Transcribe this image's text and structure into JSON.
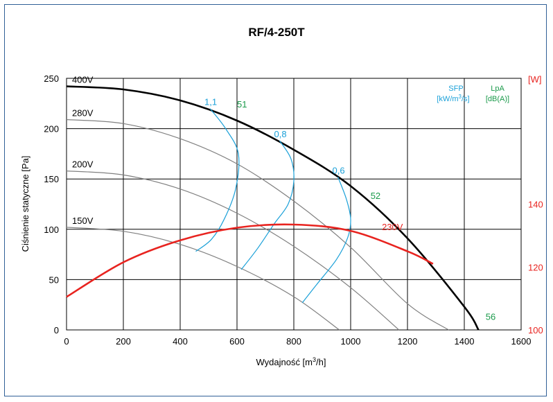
{
  "chart_data": {
    "type": "line",
    "title": "RF/4-250T",
    "xlabel": "Wydajność [m³/h]",
    "ylabel": "Ciśnienie statyczne [Pa]",
    "y2label": "[W]",
    "xlim": [
      0,
      1600
    ],
    "ylim": [
      0,
      250
    ],
    "y2lim": [
      100,
      180
    ],
    "xticks": [
      "0",
      "200",
      "400",
      "600",
      "800",
      "1000",
      "1200",
      "1400",
      "1600"
    ],
    "yticks": [
      "0",
      "50",
      "100",
      "150",
      "200",
      "250"
    ],
    "y2ticks": [
      "100",
      "120",
      "140"
    ],
    "grid": true,
    "legend": {
      "sfp": {
        "line1": "SFP",
        "line2": "[kW/m",
        "sup": "3",
        "line2_end": "/s]"
      },
      "lpa": {
        "line1": "LpA",
        "line2": "[dB(A)]"
      }
    },
    "fan_curves": [
      {
        "name": "400V",
        "color": "#000000",
        "x": [
          0,
          200,
          400,
          600,
          800,
          1000,
          1200,
          1400,
          1450
        ],
        "y": [
          242,
          239,
          228,
          208,
          179,
          143,
          91,
          23,
          0
        ]
      },
      {
        "name": "280V",
        "color": "#808080",
        "x": [
          0,
          200,
          400,
          600,
          800,
          1000,
          1200,
          1345
        ],
        "y": [
          209,
          205,
          190,
          165,
          128,
          82,
          26,
          0
        ]
      },
      {
        "name": "200V",
        "color": "#808080",
        "x": [
          0,
          200,
          400,
          600,
          800,
          1000,
          1170
        ],
        "y": [
          158,
          154,
          140,
          116,
          83,
          42,
          0
        ]
      },
      {
        "name": "150V",
        "color": "#808080",
        "x": [
          0,
          200,
          400,
          600,
          800,
          960
        ],
        "y": [
          102,
          98,
          85,
          63,
          33,
          0
        ]
      }
    ],
    "power_curve": {
      "name": "230V",
      "color": "#e8231f",
      "axis": "right",
      "x": [
        0,
        200,
        400,
        600,
        800,
        1000,
        1200,
        1290
      ],
      "y": [
        110.5,
        121.5,
        128.5,
        132.5,
        133.5,
        131.5,
        125,
        121
      ]
    },
    "sfp_curves": [
      {
        "name": "1,1",
        "color": "#1aa0d8",
        "x": [
          505,
          560,
          605,
          595,
          555,
          510,
          455
        ],
        "y": [
          220,
          200,
          175,
          140,
          110,
          90,
          78
        ]
      },
      {
        "name": "0,8",
        "color": "#1aa0d8",
        "x": [
          750,
          790,
          800,
          780,
          730,
          670,
          615
        ],
        "y": [
          188,
          170,
          148,
          125,
          105,
          80,
          60
        ]
      },
      {
        "name": "0,6",
        "color": "#1aa0d8",
        "x": [
          955,
          985,
          1000,
          990,
          950,
          880,
          830
        ],
        "y": [
          152,
          130,
          110,
          92,
          70,
          45,
          27
        ]
      }
    ],
    "lpa_labels": [
      {
        "text": "51",
        "x": 600,
        "y": 221
      },
      {
        "text": "52",
        "x": 1070,
        "y": 130
      },
      {
        "text": "56",
        "x": 1475,
        "y": 10
      }
    ],
    "colors": {
      "sfp": "#1aa0d8",
      "lpa": "#1a9a4a",
      "power": "#e8231f",
      "frame": "#2f5f97"
    }
  }
}
